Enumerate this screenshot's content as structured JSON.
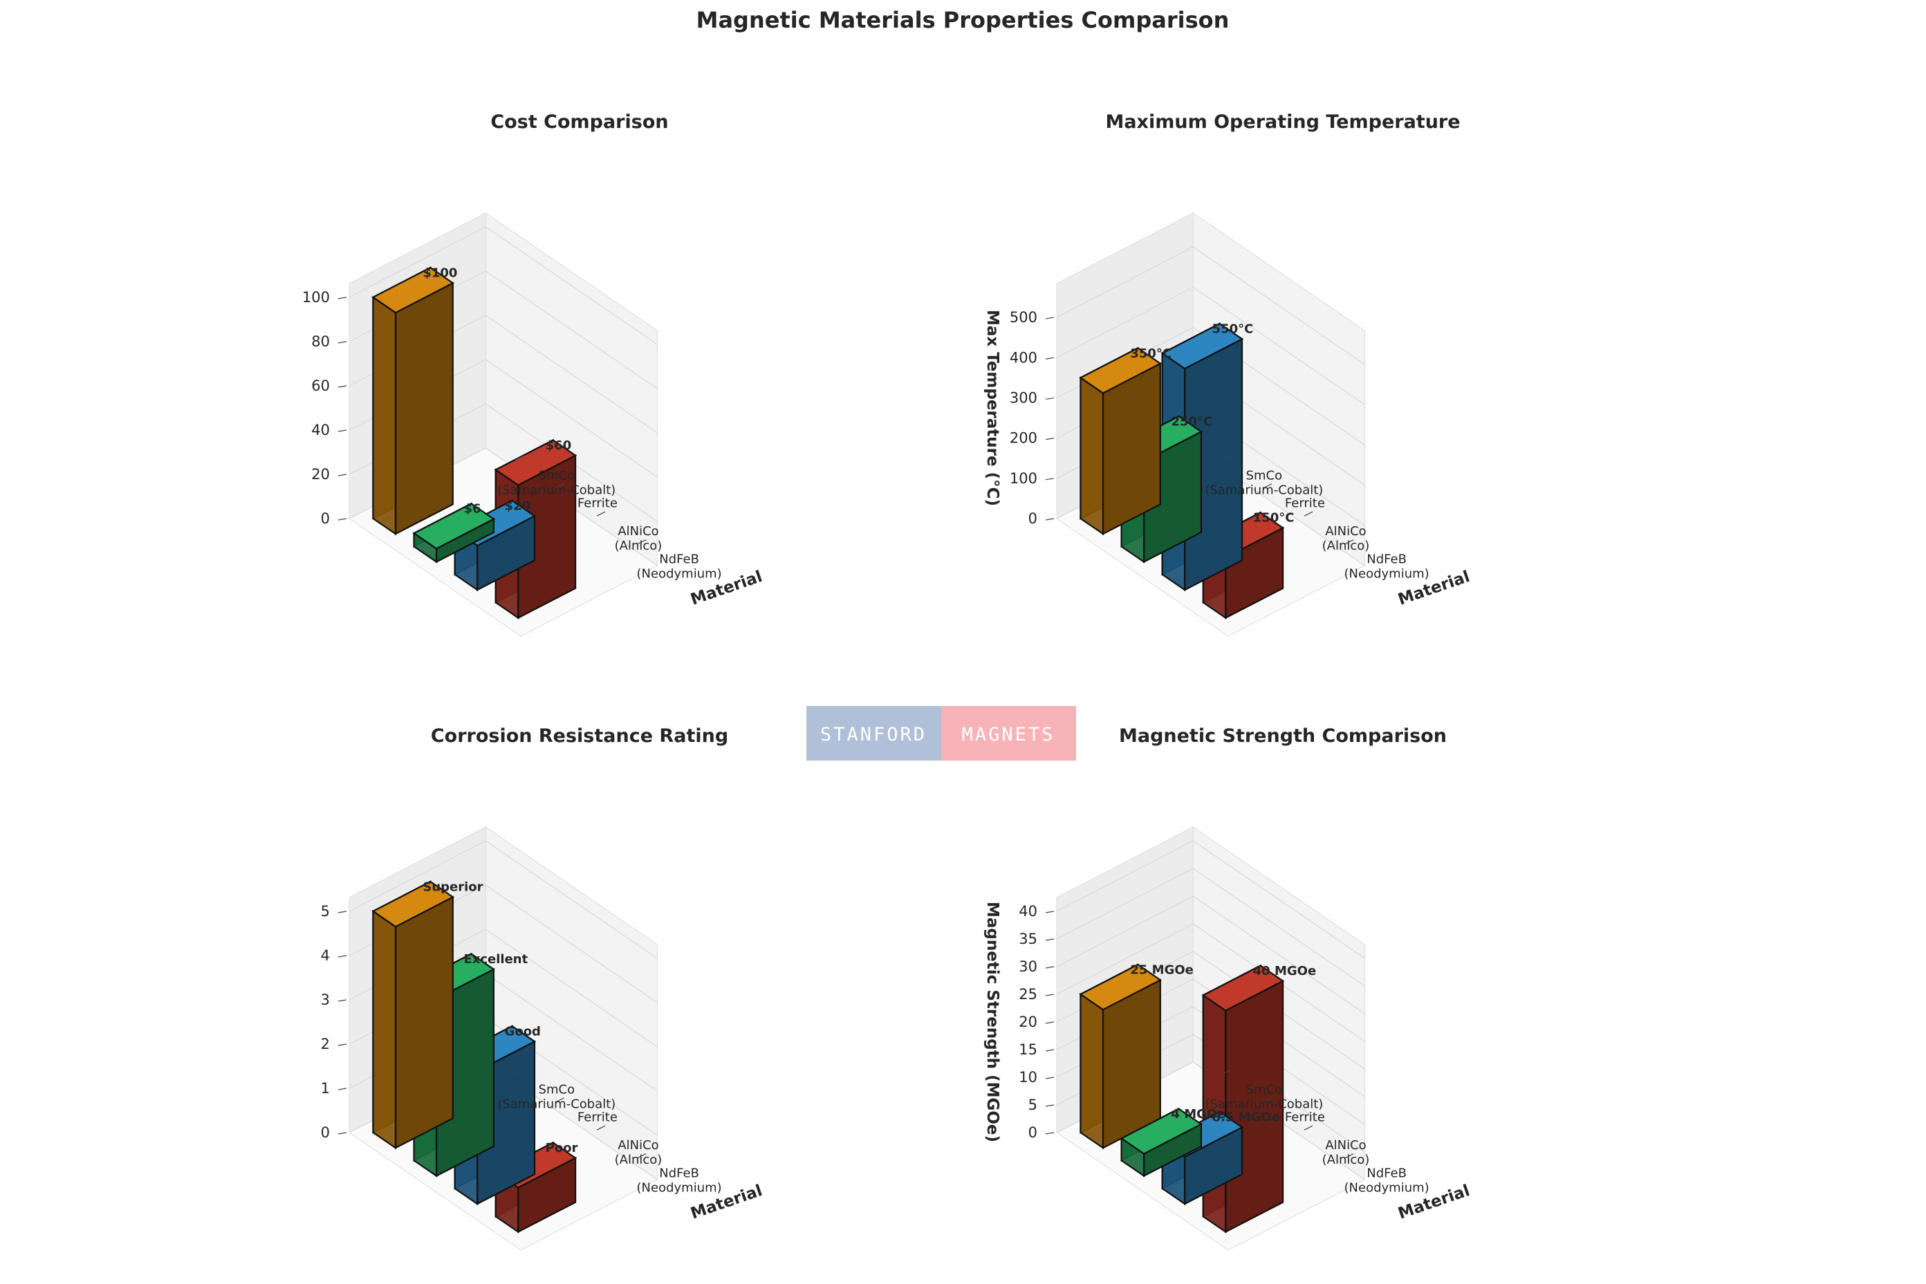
{
  "figure_title": "Magnetic Materials Properties Comparison",
  "logo": {
    "left_text": "STANFORD",
    "right_text": "MAGNETS",
    "left_color": "#b0c0d8",
    "right_color": "#f7b3b8"
  },
  "colors": {
    "NdFeB": "#c0392b",
    "AlNiCo": "#2e86c1",
    "Ferrite": "#27ae60",
    "SmCo": "#d68910"
  },
  "chart_data": [
    {
      "type": "bar",
      "title": "Cost Comparison",
      "xlabel": "Material",
      "ylabel": "",
      "categories": [
        "SmCo\n(Samarium-Cobalt)",
        "Ferrite",
        "AlNiCo\n(Alnico)",
        "NdFeB\n(Neodymium)"
      ],
      "series_keys": [
        "SmCo",
        "Ferrite",
        "AlNiCo",
        "NdFeB"
      ],
      "values": [
        100,
        6,
        20,
        60
      ],
      "data_labels": [
        "$100",
        "$6",
        "$20",
        "$60"
      ],
      "ylim": [
        0,
        100
      ],
      "yticks": [
        0,
        20,
        40,
        60,
        80,
        100
      ]
    },
    {
      "type": "bar",
      "title": "Maximum Operating Temperature",
      "xlabel": "Material",
      "ylabel": "Max Temperature (°C)",
      "categories": [
        "SmCo\n(Samarium-Cobalt)",
        "Ferrite",
        "AlNiCo\n(Alnico)",
        "NdFeB\n(Neodymium)"
      ],
      "series_keys": [
        "SmCo",
        "Ferrite",
        "AlNiCo",
        "NdFeB"
      ],
      "values": [
        350,
        250,
        550,
        150
      ],
      "data_labels": [
        "350°C",
        "250°C",
        "550°C",
        "150°C"
      ],
      "ylim": [
        0,
        550
      ],
      "yticks": [
        0,
        100,
        200,
        300,
        400,
        500
      ]
    },
    {
      "type": "bar",
      "title": "Corrosion Resistance Rating",
      "xlabel": "Material",
      "ylabel": "",
      "categories": [
        "SmCo\n(Samarium-Cobalt)",
        "Ferrite",
        "AlNiCo\n(Alnico)",
        "NdFeB\n(Neodymium)"
      ],
      "series_keys": [
        "SmCo",
        "Ferrite",
        "AlNiCo",
        "NdFeB"
      ],
      "values": [
        5,
        4,
        3,
        1
      ],
      "data_labels": [
        "Superior",
        "Excellent",
        "Good",
        "Poor"
      ],
      "ylim": [
        0,
        5
      ],
      "yticks": [
        0,
        1,
        2,
        3,
        4,
        5
      ]
    },
    {
      "type": "bar",
      "title": "Magnetic Strength Comparison",
      "xlabel": "Material",
      "ylabel": "Magnetic Strength (MGOe)",
      "categories": [
        "SmCo\n(Samarium-Cobalt)",
        "Ferrite",
        "AlNiCo\n(Alnico)",
        "NdFeB\n(Neodymium)"
      ],
      "series_keys": [
        "SmCo",
        "Ferrite",
        "AlNiCo",
        "NdFeB"
      ],
      "values": [
        25,
        4,
        8.5,
        40
      ],
      "data_labels": [
        "25 MGOe",
        "4 MGOe",
        "8.5 MGOe",
        "40 MGOe"
      ],
      "ylim": [
        0,
        40
      ],
      "yticks": [
        0,
        5,
        10,
        15,
        20,
        25,
        30,
        35,
        40
      ]
    }
  ]
}
